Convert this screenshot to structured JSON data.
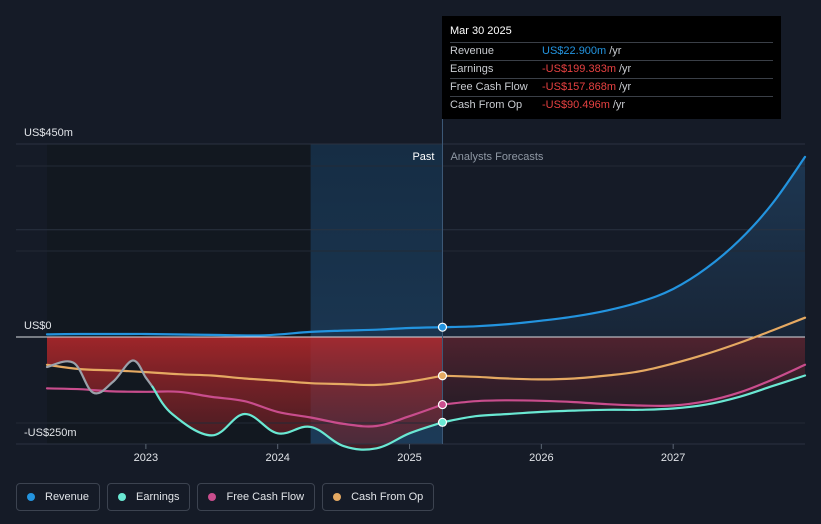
{
  "tooltip": {
    "date": "Mar 30 2025",
    "rows": [
      {
        "label": "Revenue",
        "value": "US$22.900m",
        "unit": "/yr",
        "color": "#2394df"
      },
      {
        "label": "Earnings",
        "value": "-US$199.383m",
        "unit": "/yr",
        "color": "#e64141"
      },
      {
        "label": "Free Cash Flow",
        "value": "-US$157.868m",
        "unit": "/yr",
        "color": "#e64141"
      },
      {
        "label": "Cash From Op",
        "value": "-US$90.496m",
        "unit": "/yr",
        "color": "#e64141"
      }
    ]
  },
  "legend": [
    {
      "label": "Revenue",
      "color": "#2394df"
    },
    {
      "label": "Earnings",
      "color": "#6ae8d3"
    },
    {
      "label": "Free Cash Flow",
      "color": "#c94d8d"
    },
    {
      "label": "Cash From Op",
      "color": "#e5a962"
    }
  ],
  "chart_data": {
    "type": "line",
    "title": "",
    "y_unit": "US$m",
    "ylim": [
      -250,
      450
    ],
    "y_tick_labels": [
      {
        "value": 450,
        "label": "US$450m"
      },
      {
        "value": 0,
        "label": "US$0"
      },
      {
        "value": -250,
        "label": "-US$250m"
      }
    ],
    "xlim": [
      2022.25,
      2028.0
    ],
    "x_ticks": [
      2023,
      2024,
      2025,
      2026,
      2027
    ],
    "x_tick_labels": [
      "2023",
      "2024",
      "2025",
      "2026",
      "2027"
    ],
    "past_label": "Past",
    "forecast_label": "Analysts Forecasts",
    "highlight_start": 2024.25,
    "divider_x": 2025.25,
    "series": [
      {
        "name": "Revenue",
        "color": "#2394df",
        "x": [
          2022.25,
          2022.5,
          2023.0,
          2023.5,
          2023.9,
          2024.25,
          2024.5,
          2024.75,
          2025.0,
          2025.25,
          2025.5,
          2025.75,
          2026.0,
          2026.25,
          2026.5,
          2026.75,
          2027.0,
          2027.25,
          2027.5,
          2027.75,
          2028.0
        ],
        "y": [
          6,
          7,
          7,
          5,
          4,
          12,
          15,
          17,
          21,
          22.9,
          25,
          30,
          38,
          48,
          62,
          82,
          112,
          160,
          225,
          310,
          420
        ]
      },
      {
        "name": "Earnings",
        "color": "#6ae8d3",
        "x": [
          2022.25,
          2022.45,
          2022.6,
          2022.75,
          2022.9,
          2023.0,
          2023.2,
          2023.5,
          2023.75,
          2024.0,
          2024.25,
          2024.5,
          2024.75,
          2025.0,
          2025.25,
          2025.5,
          2025.75,
          2026.0,
          2026.25,
          2026.5,
          2026.75,
          2027.0,
          2027.25,
          2027.5,
          2027.75,
          2028.0
        ],
        "y": [
          -70,
          -60,
          -130,
          -105,
          -55,
          -95,
          -180,
          -230,
          -180,
          -225,
          -210,
          -255,
          -260,
          -225,
          -199.383,
          -185,
          -180,
          -175,
          -172,
          -170,
          -170,
          -167,
          -158,
          -140,
          -115,
          -90
        ]
      },
      {
        "name": "Free Cash Flow",
        "color": "#c94d8d",
        "x": [
          2022.25,
          2022.5,
          2022.75,
          2023.0,
          2023.25,
          2023.5,
          2023.75,
          2024.0,
          2024.25,
          2024.5,
          2024.75,
          2025.0,
          2025.25,
          2025.5,
          2025.75,
          2026.0,
          2026.25,
          2026.5,
          2026.75,
          2027.0,
          2027.25,
          2027.5,
          2027.75,
          2028.0
        ],
        "y": [
          -120,
          -122,
          -127,
          -128,
          -128,
          -140,
          -150,
          -175,
          -188,
          -203,
          -208,
          -185,
          -157.868,
          -150,
          -148,
          -149,
          -152,
          -157,
          -160,
          -160,
          -150,
          -130,
          -100,
          -65
        ]
      },
      {
        "name": "Cash From Op",
        "color": "#e5a962",
        "x": [
          2022.25,
          2022.5,
          2022.75,
          2023.0,
          2023.25,
          2023.5,
          2023.75,
          2024.0,
          2024.25,
          2024.5,
          2024.75,
          2025.0,
          2025.25,
          2025.5,
          2025.75,
          2026.0,
          2026.25,
          2026.5,
          2026.75,
          2027.0,
          2027.25,
          2027.5,
          2027.75,
          2028.0
        ],
        "y": [
          -65,
          -75,
          -78,
          -82,
          -87,
          -90,
          -97,
          -102,
          -108,
          -110,
          -112,
          -104,
          -90.496,
          -93,
          -97,
          -99,
          -97,
          -90,
          -80,
          -62,
          -40,
          -14,
          15,
          45
        ]
      }
    ]
  }
}
